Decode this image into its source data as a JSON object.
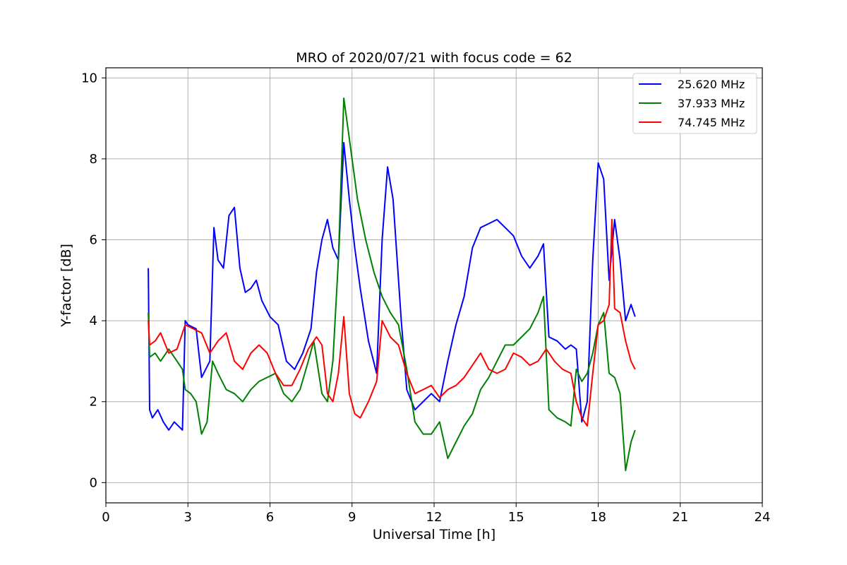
{
  "chart_data": {
    "type": "line",
    "title": "MRO of 2020/07/21 with focus code = 62",
    "xlabel": "Universal Time [h]",
    "ylabel": "Y-factor [dB]",
    "xlim": [
      0,
      24
    ],
    "ylim": [
      -0.5,
      10.25
    ],
    "xticks": [
      0,
      3,
      6,
      9,
      12,
      15,
      18,
      21,
      24
    ],
    "yticks": [
      0,
      2,
      4,
      6,
      8,
      10
    ],
    "grid": true,
    "legend_position": "top-right",
    "series": [
      {
        "name": "25.620 MHz",
        "color": "#0000ff",
        "x": [
          1.55,
          1.6,
          1.7,
          1.9,
          2.1,
          2.3,
          2.5,
          2.8,
          2.9,
          3.0,
          3.3,
          3.5,
          3.8,
          3.95,
          4.1,
          4.3,
          4.5,
          4.7,
          4.9,
          5.1,
          5.3,
          5.5,
          5.7,
          6.0,
          6.3,
          6.6,
          6.9,
          7.2,
          7.5,
          7.7,
          7.9,
          8.1,
          8.3,
          8.5,
          8.7,
          8.9,
          9.1,
          9.3,
          9.6,
          9.9,
          10.1,
          10.3,
          10.5,
          10.8,
          11.0,
          11.3,
          11.6,
          11.9,
          12.2,
          12.5,
          12.8,
          13.1,
          13.4,
          13.7,
          14.0,
          14.3,
          14.6,
          14.9,
          15.2,
          15.5,
          15.8,
          16.0,
          16.2,
          16.5,
          16.8,
          17.0,
          17.2,
          17.4,
          17.6,
          17.8,
          18.0,
          18.2,
          18.4,
          18.6,
          18.8,
          19.0,
          19.2,
          19.35
        ],
        "values": [
          5.3,
          1.8,
          1.6,
          1.8,
          1.5,
          1.3,
          1.5,
          1.3,
          4.0,
          3.9,
          3.8,
          2.6,
          3.0,
          6.3,
          5.5,
          5.3,
          6.6,
          6.8,
          5.3,
          4.7,
          4.8,
          5.0,
          4.5,
          4.1,
          3.9,
          3.0,
          2.8,
          3.2,
          3.8,
          5.2,
          6.0,
          6.5,
          5.8,
          5.5,
          8.4,
          7.0,
          5.8,
          4.8,
          3.5,
          2.7,
          6.0,
          7.8,
          7.0,
          4.0,
          2.3,
          1.8,
          2.0,
          2.2,
          2.0,
          3.0,
          3.9,
          4.6,
          5.8,
          6.3,
          6.4,
          6.5,
          6.3,
          6.1,
          5.6,
          5.3,
          5.6,
          5.9,
          3.6,
          3.5,
          3.3,
          3.4,
          3.3,
          1.5,
          2.0,
          5.5,
          7.9,
          7.5,
          5.0,
          6.5,
          5.5,
          4.0,
          4.4,
          4.1
        ]
      },
      {
        "name": "37.933 MHz",
        "color": "#008000",
        "x": [
          1.55,
          1.6,
          1.8,
          2.0,
          2.3,
          2.6,
          2.8,
          2.9,
          3.1,
          3.3,
          3.5,
          3.7,
          3.9,
          4.1,
          4.4,
          4.7,
          5.0,
          5.3,
          5.6,
          5.9,
          6.2,
          6.5,
          6.8,
          7.1,
          7.4,
          7.6,
          7.9,
          8.1,
          8.3,
          8.5,
          8.7,
          8.9,
          9.2,
          9.5,
          9.8,
          10.1,
          10.4,
          10.7,
          11.0,
          11.3,
          11.6,
          11.9,
          12.2,
          12.5,
          12.8,
          13.1,
          13.4,
          13.7,
          14.0,
          14.3,
          14.6,
          14.9,
          15.2,
          15.5,
          15.8,
          16.0,
          16.2,
          16.5,
          16.8,
          17.0,
          17.2,
          17.4,
          17.6,
          17.8,
          18.0,
          18.2,
          18.4,
          18.6,
          18.8,
          19.0,
          19.2,
          19.35
        ],
        "values": [
          4.2,
          3.1,
          3.2,
          3.0,
          3.3,
          3.0,
          2.8,
          2.3,
          2.2,
          2.0,
          1.2,
          1.5,
          3.0,
          2.7,
          2.3,
          2.2,
          2.0,
          2.3,
          2.5,
          2.6,
          2.7,
          2.2,
          2.0,
          2.3,
          3.0,
          3.5,
          2.2,
          2.0,
          3.0,
          5.5,
          9.5,
          8.5,
          7.0,
          6.0,
          5.2,
          4.6,
          4.2,
          3.9,
          2.8,
          1.5,
          1.2,
          1.2,
          1.5,
          0.6,
          1.0,
          1.4,
          1.7,
          2.3,
          2.6,
          3.0,
          3.4,
          3.4,
          3.6,
          3.8,
          4.2,
          4.6,
          1.8,
          1.6,
          1.5,
          1.4,
          2.8,
          2.5,
          2.7,
          3.2,
          3.9,
          4.2,
          2.7,
          2.6,
          2.2,
          0.3,
          1.0,
          1.3
        ]
      },
      {
        "name": "74.745 MHz",
        "color": "#ff0000",
        "x": [
          1.55,
          1.6,
          1.8,
          2.0,
          2.3,
          2.6,
          2.9,
          3.2,
          3.5,
          3.8,
          4.1,
          4.4,
          4.7,
          5.0,
          5.3,
          5.6,
          5.9,
          6.2,
          6.5,
          6.8,
          7.1,
          7.4,
          7.7,
          7.9,
          8.1,
          8.3,
          8.5,
          8.7,
          8.9,
          9.1,
          9.3,
          9.6,
          9.9,
          10.1,
          10.4,
          10.7,
          11.0,
          11.3,
          11.6,
          11.9,
          12.2,
          12.5,
          12.8,
          13.1,
          13.4,
          13.7,
          14.0,
          14.3,
          14.6,
          14.9,
          15.2,
          15.5,
          15.8,
          16.1,
          16.4,
          16.7,
          17.0,
          17.2,
          17.4,
          17.6,
          17.8,
          18.0,
          18.2,
          18.4,
          18.5,
          18.6,
          18.8,
          19.0,
          19.2,
          19.35
        ],
        "values": [
          4.0,
          3.4,
          3.5,
          3.7,
          3.2,
          3.3,
          3.9,
          3.8,
          3.7,
          3.2,
          3.5,
          3.7,
          3.0,
          2.8,
          3.2,
          3.4,
          3.2,
          2.7,
          2.4,
          2.4,
          2.8,
          3.3,
          3.6,
          3.4,
          2.2,
          2.0,
          2.7,
          4.1,
          2.2,
          1.7,
          1.6,
          2.0,
          2.5,
          4.0,
          3.6,
          3.4,
          2.7,
          2.2,
          2.3,
          2.4,
          2.1,
          2.3,
          2.4,
          2.6,
          2.9,
          3.2,
          2.8,
          2.7,
          2.8,
          3.2,
          3.1,
          2.9,
          3.0,
          3.3,
          3.0,
          2.8,
          2.7,
          2.0,
          1.6,
          1.4,
          2.7,
          3.9,
          4.0,
          4.4,
          6.5,
          4.3,
          4.2,
          3.5,
          3.0,
          2.8
        ]
      }
    ]
  }
}
